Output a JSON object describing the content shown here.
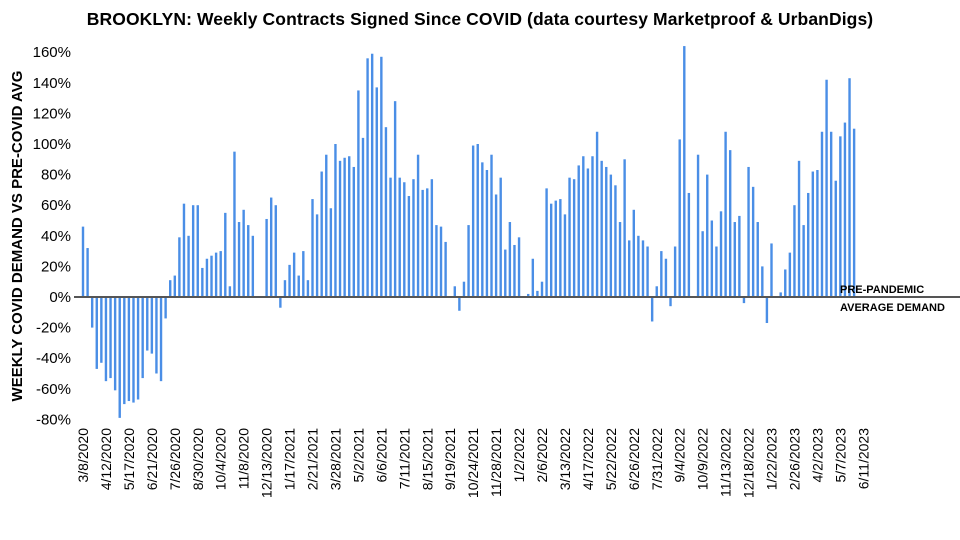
{
  "chart_data": {
    "type": "bar",
    "title": "BROOKLYN: Weekly Contracts Signed Since COVID (data courtesy Marketproof & UrbanDigs)",
    "ylabel": "WEEKLY COVID DEMAND VS PRE-COVID AVG",
    "xlabel": "",
    "ylim": [
      -80,
      160
    ],
    "yticks": [
      "-80%",
      "-60%",
      "-40%",
      "-20%",
      "0%",
      "20%",
      "40%",
      "60%",
      "80%",
      "100%",
      "120%",
      "140%",
      "160%"
    ],
    "xticks": [
      "3/8/2020",
      "4/12/2020",
      "5/17/2020",
      "6/21/2020",
      "7/26/2020",
      "8/30/2020",
      "10/4/2020",
      "11/8/2020",
      "12/13/2020",
      "1/17/2021",
      "2/21/2021",
      "3/28/2021",
      "5/2/2021",
      "6/6/2021",
      "7/11/2021",
      "8/15/2021",
      "9/19/2021",
      "10/24/2021",
      "11/28/2021",
      "1/2/2022",
      "2/6/2022",
      "3/13/2022",
      "4/17/2022",
      "5/22/2022",
      "6/26/2022",
      "7/31/2022",
      "9/4/2022",
      "10/9/2022",
      "11/13/2022",
      "12/18/2022",
      "1/22/2023",
      "2/26/2023",
      "4/2/2023",
      "5/7/2023",
      "6/11/2023"
    ],
    "annotation": {
      "line1": "PRE-PANDEMIC",
      "line2": "AVERAGE DEMAND"
    },
    "grid": false,
    "legend": "none",
    "bar_color": "#4a8ee6",
    "values": [
      46,
      32,
      -20,
      -47,
      -43,
      -55,
      -53,
      -61,
      -79,
      -70,
      -68,
      -69,
      -67,
      -53,
      -35,
      -37,
      -50,
      -55,
      -14,
      11,
      14,
      39,
      61,
      40,
      60,
      60,
      19,
      25,
      27,
      29,
      30,
      55,
      7,
      95,
      49,
      57,
      47,
      40,
      0,
      0,
      51,
      65,
      60,
      -7,
      11,
      21,
      29,
      14,
      30,
      11,
      64,
      54,
      82,
      93,
      58,
      100,
      89,
      91,
      92,
      85,
      135,
      104,
      156,
      159,
      137,
      157,
      111,
      78,
      128,
      78,
      75,
      66,
      77,
      93,
      70,
      71,
      77,
      47,
      46,
      36,
      0,
      7,
      -9,
      10,
      47,
      99,
      100,
      88,
      83,
      93,
      67,
      78,
      31,
      49,
      34,
      39,
      0,
      2,
      25,
      4,
      10,
      71,
      61,
      63,
      64,
      54,
      78,
      77,
      86,
      92,
      84,
      92,
      108,
      89,
      85,
      80,
      73,
      49,
      90,
      37,
      57,
      40,
      37,
      33,
      -16,
      7,
      30,
      25,
      -6,
      33,
      103,
      164,
      68,
      0,
      93,
      43,
      80,
      50,
      33,
      56,
      108,
      96,
      49,
      53,
      -4,
      85,
      72,
      49,
      20,
      -17,
      35,
      0,
      3,
      18,
      29,
      60,
      89,
      47,
      68,
      82,
      83,
      108,
      142,
      108,
      76,
      105,
      114,
      143,
      110
    ]
  }
}
